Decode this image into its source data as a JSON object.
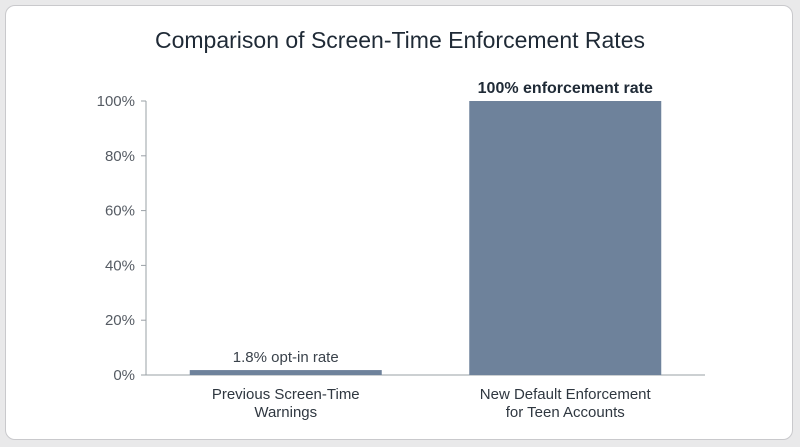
{
  "chart_data": {
    "type": "bar",
    "title": "Comparison of Screen-Time Enforcement Rates",
    "xlabel": "",
    "ylabel": "",
    "ylim": [
      0,
      100
    ],
    "yticks": [
      "0%",
      "20%",
      "40%",
      "60%",
      "80%",
      "100%"
    ],
    "ytick_values": [
      0,
      20,
      40,
      60,
      80,
      100
    ],
    "categories": [
      [
        "Previous Screen-Time",
        "Warnings"
      ],
      [
        "New Default Enforcement",
        "for Teen Accounts"
      ]
    ],
    "values": [
      1.8,
      100
    ],
    "data_labels": [
      "1.8% opt-in rate",
      "100% enforcement rate"
    ],
    "bar_color": "#6e829b",
    "grid": false,
    "legend": "none"
  }
}
